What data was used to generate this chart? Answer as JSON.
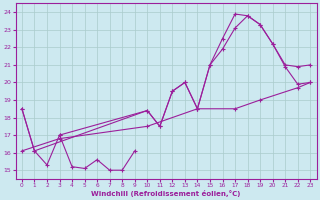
{
  "xlabel": "Windchill (Refroidissement éolien,°C)",
  "xlim": [
    -0.5,
    23.5
  ],
  "ylim": [
    14.5,
    24.5
  ],
  "yticks": [
    15,
    16,
    17,
    18,
    19,
    20,
    21,
    22,
    23,
    24
  ],
  "xticks": [
    0,
    1,
    2,
    3,
    4,
    5,
    6,
    7,
    8,
    9,
    10,
    11,
    12,
    13,
    14,
    15,
    16,
    17,
    18,
    19,
    20,
    21,
    22,
    23
  ],
  "line_color": "#9B1F9B",
  "bg_color": "#cde9f0",
  "grid_color": "#aacccc",
  "lines": [
    {
      "x": [
        0,
        1,
        2,
        3,
        4,
        5,
        6,
        7,
        8,
        9
      ],
      "y": [
        18.5,
        16.1,
        15.3,
        17.0,
        15.2,
        15.1,
        15.6,
        15.0,
        15.0,
        16.1
      ]
    },
    {
      "x": [
        0,
        3,
        10,
        14,
        17,
        19,
        22,
        23
      ],
      "y": [
        16.1,
        16.8,
        17.5,
        18.5,
        18.5,
        19.0,
        19.7,
        20.0
      ]
    },
    {
      "x": [
        3,
        10,
        11,
        12,
        13,
        14,
        15,
        16,
        17,
        18,
        19,
        20,
        21,
        22,
        23
      ],
      "y": [
        17.0,
        18.4,
        17.5,
        19.5,
        20.0,
        18.5,
        21.0,
        21.9,
        23.1,
        23.8,
        23.3,
        22.2,
        20.9,
        19.9,
        20.0
      ]
    },
    {
      "x": [
        0,
        1,
        10,
        11,
        12,
        13,
        14,
        15,
        16,
        17,
        18,
        19,
        20,
        21,
        22,
        23
      ],
      "y": [
        18.5,
        16.1,
        18.4,
        17.5,
        19.5,
        20.0,
        18.5,
        21.0,
        22.5,
        23.9,
        23.8,
        23.3,
        22.2,
        21.0,
        20.9,
        21.0
      ]
    }
  ]
}
